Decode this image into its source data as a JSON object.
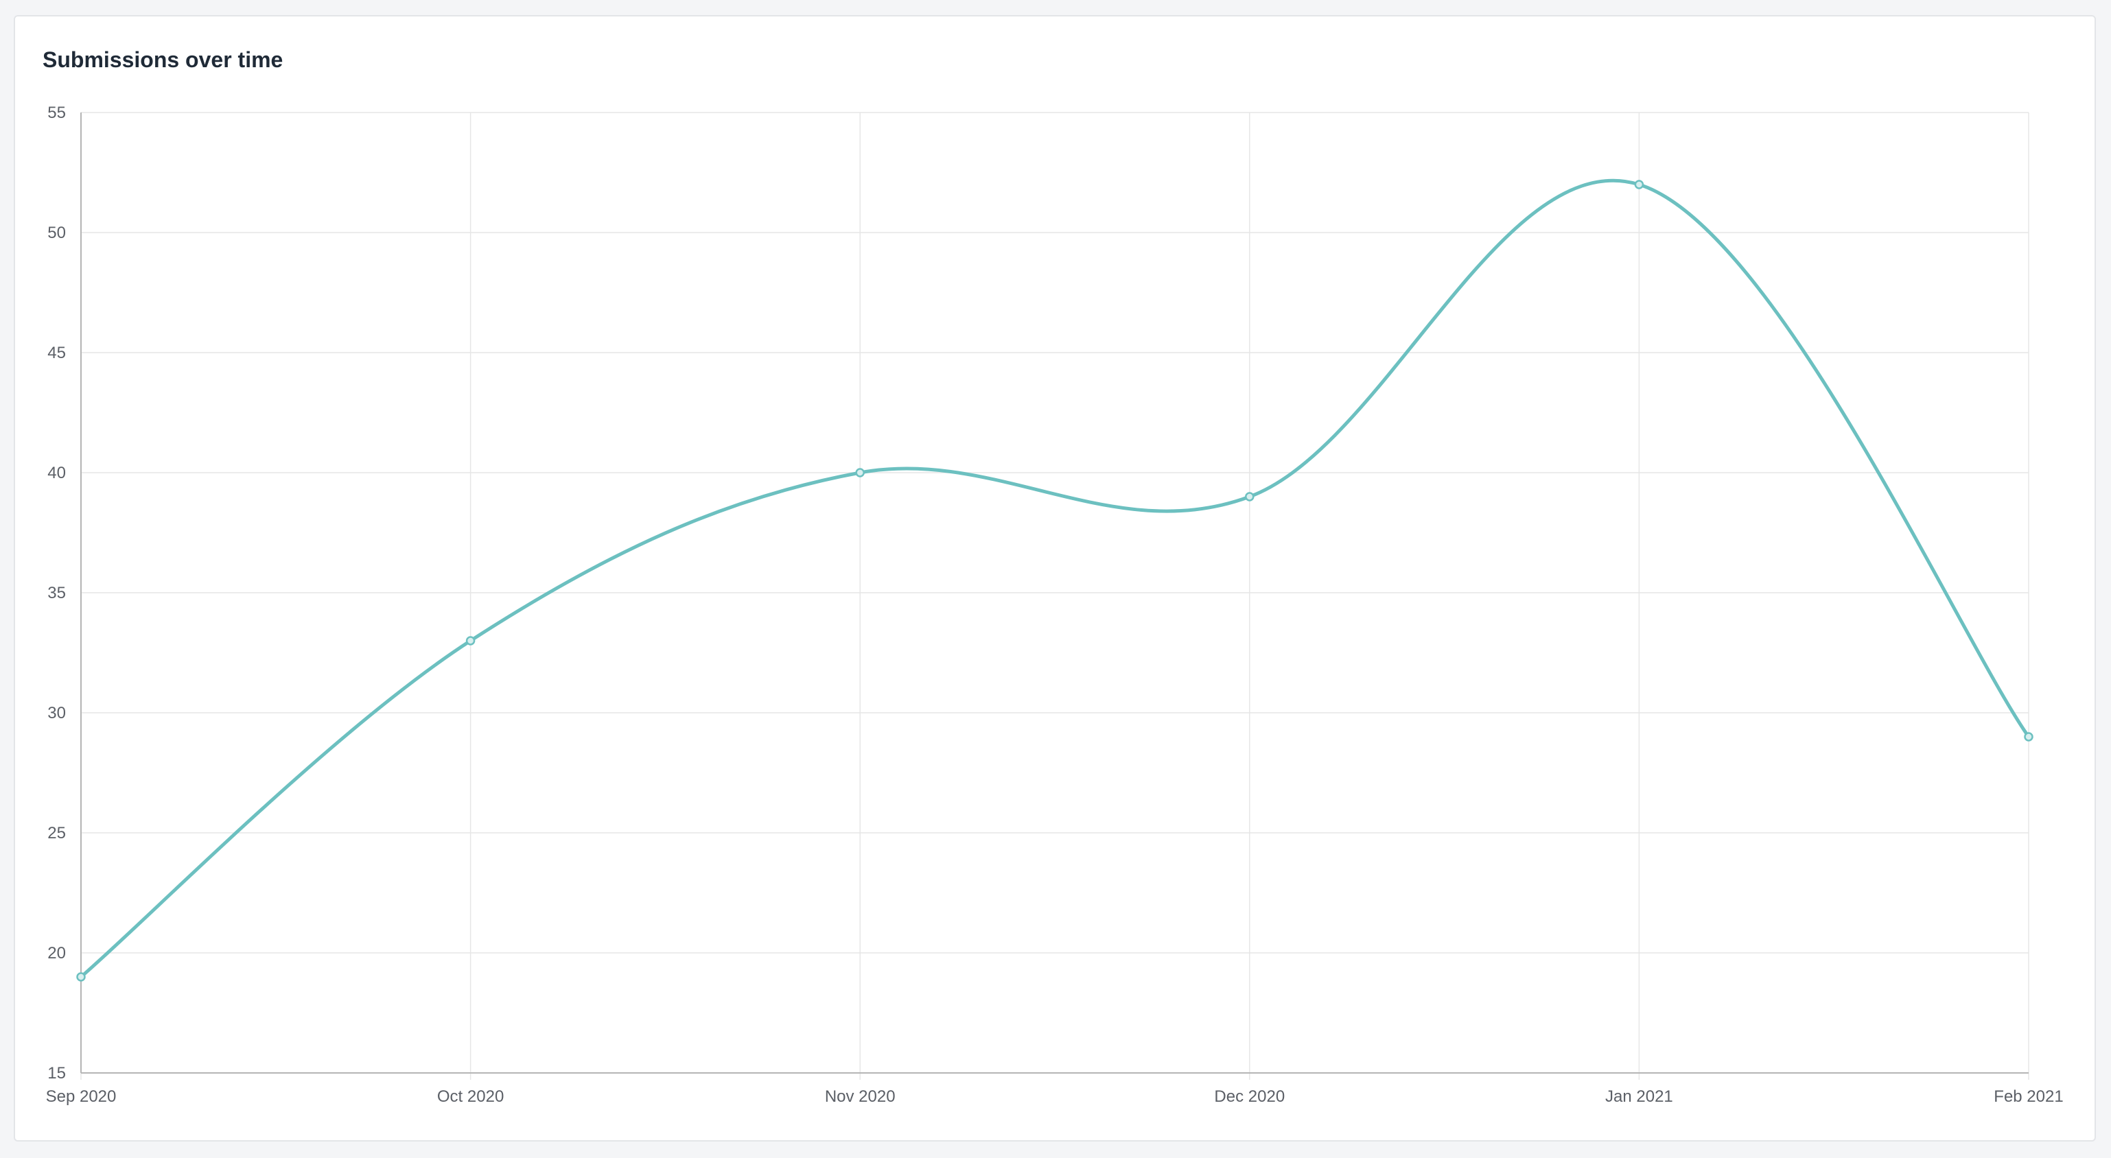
{
  "card": {
    "title": "Submissions over time"
  },
  "colors": {
    "line": "#6cc0c0",
    "grid": "#e6e6e6",
    "axis": "#b5b5b5",
    "tick_text": "#5b5f66",
    "title": "#1f2a37"
  },
  "chart_data": {
    "type": "line",
    "title": "Submissions over time",
    "xlabel": "",
    "ylabel": "",
    "categories": [
      "Sep 2020",
      "Oct 2020",
      "Nov 2020",
      "Dec 2020",
      "Jan 2021",
      "Feb 2021"
    ],
    "series": [
      {
        "values": [
          19,
          33,
          40,
          39,
          52,
          29
        ]
      }
    ],
    "ylim": [
      15,
      55
    ],
    "yticks": [
      15,
      20,
      25,
      30,
      35,
      40,
      45,
      50,
      55
    ],
    "grid": true,
    "smooth": true,
    "legend": "none"
  }
}
